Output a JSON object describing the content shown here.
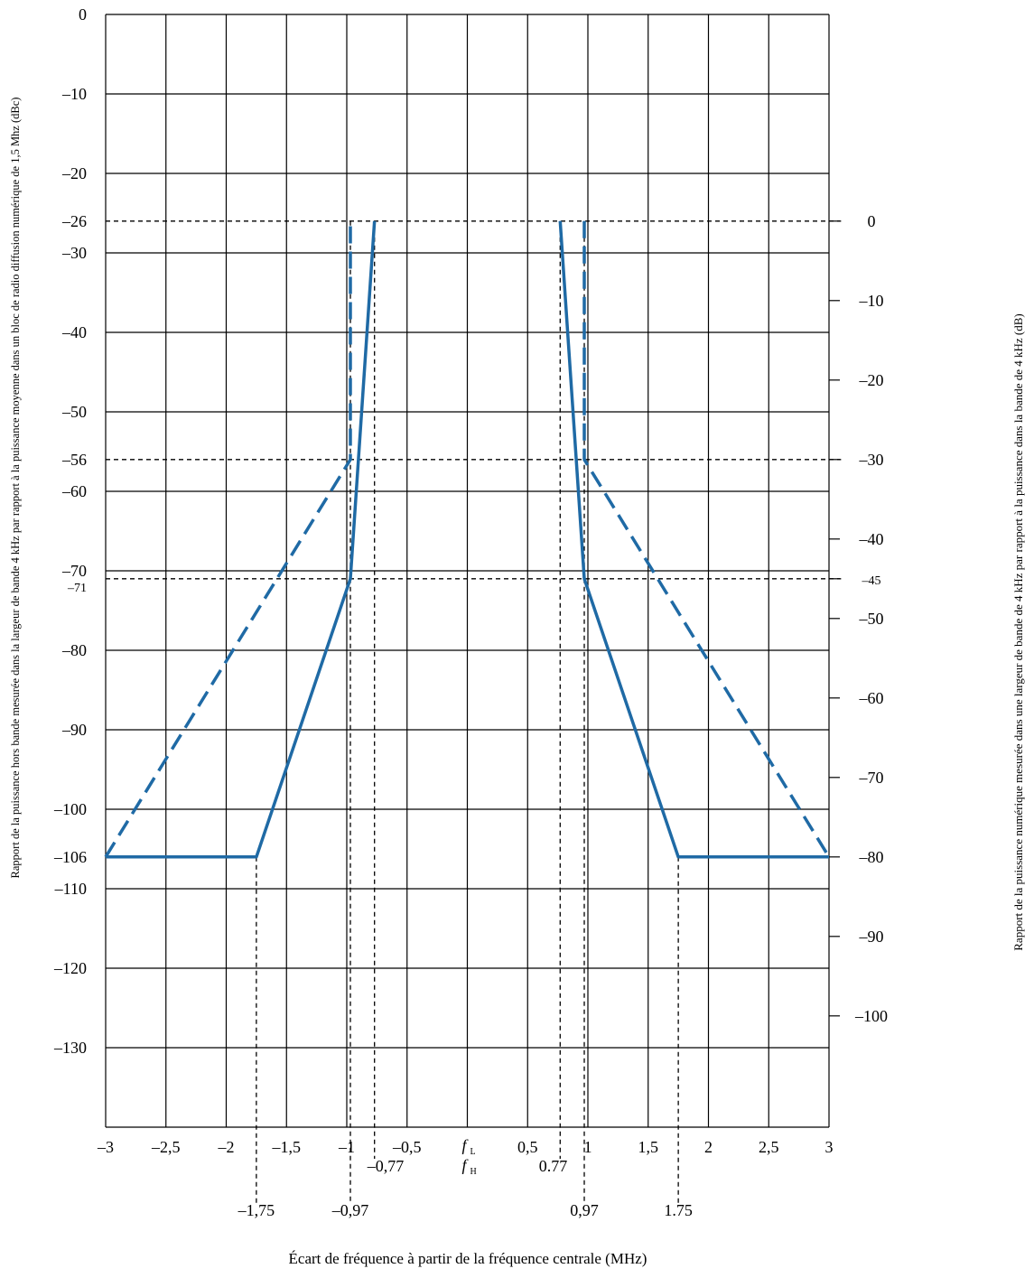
{
  "chart_data": {
    "type": "line",
    "xlabel": "Écart de fréquence à partir de la fréquence centrale (MHz)",
    "ylabel_left": "Rapport de la puissance hors bande mesurée dans la largeur de bande 4 kHz par rapport à la puissance moyenne dans un bloc de radio diffusion numérique de 1,5 Mhz (dBc)",
    "ylabel_right": "Rapport de la puissance numérique mesurée dans une largeur de bande de 4 kHz par rapport à la puissance dans la bande de 4 kHz (dB)",
    "xlim": [
      -3,
      3
    ],
    "ylim": [
      -140,
      0
    ],
    "grid": true,
    "x_ticks": [
      {
        "v": -3,
        "t": "–3"
      },
      {
        "v": -2.5,
        "t": "–2,5"
      },
      {
        "v": -2,
        "t": "–2"
      },
      {
        "v": -1.5,
        "t": "–1,5"
      },
      {
        "v": -1,
        "t": "–1"
      },
      {
        "v": -0.5,
        "t": "–0,5"
      },
      {
        "v": 0.5,
        "t": "0,5"
      },
      {
        "v": 1,
        "t": "1"
      },
      {
        "v": 1.5,
        "t": "1,5"
      },
      {
        "v": 2,
        "t": "2"
      },
      {
        "v": 2.5,
        "t": "2,5"
      },
      {
        "v": 3,
        "t": "3"
      }
    ],
    "center_labels": [
      "f",
      "L",
      "f",
      "H"
    ],
    "y_ticks_left": [
      {
        "v": 0,
        "t": "0"
      },
      {
        "v": -10,
        "t": "–10"
      },
      {
        "v": -20,
        "t": "–20"
      },
      {
        "v": -26,
        "t": "–26"
      },
      {
        "v": -30,
        "t": "–30"
      },
      {
        "v": -40,
        "t": "–40"
      },
      {
        "v": -50,
        "t": "–50"
      },
      {
        "v": -56,
        "t": "–56"
      },
      {
        "v": -60,
        "t": "–60"
      },
      {
        "v": -70,
        "t": "–70"
      },
      {
        "v": -71,
        "t": "–71"
      },
      {
        "v": -80,
        "t": "–80"
      },
      {
        "v": -90,
        "t": "–90"
      },
      {
        "v": -100,
        "t": "–100"
      },
      {
        "v": -106,
        "t": "–106"
      },
      {
        "v": -110,
        "t": "–110"
      },
      {
        "v": -120,
        "t": "–120"
      },
      {
        "v": -130,
        "t": "–130"
      }
    ],
    "y_ticks_right": [
      {
        "v": 0,
        "t": "0"
      },
      {
        "v": -10,
        "t": "–10"
      },
      {
        "v": -20,
        "t": "–20"
      },
      {
        "v": -30,
        "t": "–30"
      },
      {
        "v": -40,
        "t": "–40"
      },
      {
        "v": -45,
        "t": "–45"
      },
      {
        "v": -50,
        "t": "–50"
      },
      {
        "v": -60,
        "t": "–60"
      },
      {
        "v": -70,
        "t": "–70"
      },
      {
        "v": -80,
        "t": "–80"
      },
      {
        "v": -90,
        "t": "–90"
      },
      {
        "v": -100,
        "t": "–100"
      }
    ],
    "right_axis_offset_db": -26,
    "grid_y": [
      0,
      -10,
      -20,
      -30,
      -40,
      -50,
      -60,
      -70,
      -80,
      -90,
      -100,
      -110,
      -120,
      -130,
      -140
    ],
    "grid_x": [
      -3,
      -2.5,
      -2,
      -1.5,
      -1,
      -0.5,
      0,
      0.5,
      1,
      1.5,
      2,
      2.5,
      3
    ],
    "ref_lines_h": [
      {
        "y": -26,
        "x_to": 3.1
      },
      {
        "y": -56,
        "x_to": 3.1
      },
      {
        "y": -71,
        "x_to": 3.1
      }
    ],
    "ref_lines_v": [
      {
        "x": -1.75,
        "from": -106,
        "level": 1
      },
      {
        "x": -0.97,
        "from": -26,
        "level": 1
      },
      {
        "x": -0.77,
        "from": -26,
        "level": 0
      },
      {
        "x": 0.77,
        "from": -26,
        "level": 0
      },
      {
        "x": 0.97,
        "from": -26,
        "level": 1
      },
      {
        "x": 1.75,
        "from": -106,
        "level": 1
      }
    ],
    "x_marks": [
      {
        "x": -1.75,
        "t": "–1,75",
        "level": 1
      },
      {
        "x": -0.97,
        "t": "–0,97",
        "level": 1
      },
      {
        "x": -0.77,
        "t": "–0,77",
        "level": 0
      },
      {
        "x": 0.77,
        "t": "0.77",
        "level": 0
      },
      {
        "x": 0.97,
        "t": "0,97",
        "level": 1
      },
      {
        "x": 1.75,
        "t": "1.75",
        "level": 1
      }
    ],
    "color": "#1f6aa5",
    "series": [
      {
        "style": "solid",
        "points": [
          [
            -3,
            -106
          ],
          [
            -1.75,
            -106
          ],
          [
            -0.97,
            -71
          ],
          [
            -0.77,
            -26
          ]
        ]
      },
      {
        "style": "solid",
        "points": [
          [
            0.77,
            -26
          ],
          [
            0.97,
            -71
          ],
          [
            1.75,
            -106
          ],
          [
            3,
            -106
          ]
        ]
      },
      {
        "style": "dashed",
        "points": [
          [
            -3,
            -106
          ],
          [
            -0.97,
            -56
          ],
          [
            -0.97,
            -26
          ]
        ]
      },
      {
        "style": "dashed",
        "points": [
          [
            0.97,
            -26
          ],
          [
            0.97,
            -56
          ],
          [
            3,
            -106
          ]
        ]
      }
    ]
  }
}
